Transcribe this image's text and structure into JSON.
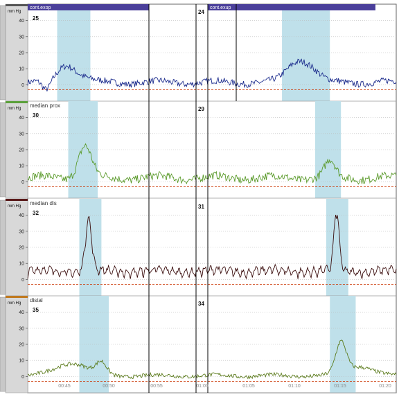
{
  "chart_data": {
    "type": "line",
    "colors": {
      "grid": "#bbbbbb",
      "highlight": "#bfe0ea",
      "baseline": "#cc3300",
      "divider": "#000000",
      "band": "#4a3f9a",
      "axis_panel": "#d8d8d8"
    },
    "x_tick_labels": [
      "00:45",
      "00:50",
      "00:55",
      "01:00",
      "01:05",
      "01:10",
      "01:15",
      "01:20"
    ],
    "band_labels": [
      "cont.exop",
      "cont.exup"
    ],
    "panels": [
      {
        "name": "panel-top",
        "label": "",
        "unit": "mm Hg",
        "color": "#1a2a8c",
        "color_tab": "#555555",
        "ylim": [
          -5,
          45
        ],
        "ticks": [
          "40",
          "30",
          "20",
          "10",
          "0"
        ],
        "numbers": [
          "25",
          "24"
        ],
        "highlights": [
          [
            0.08,
            0.17
          ],
          [
            0.69,
            0.82
          ]
        ],
        "series": {
          "baseline": 1.5,
          "noise": 2.0,
          "peaks": [
            [
              0.1,
              8,
              0.03
            ],
            [
              0.13,
              5,
              0.04
            ],
            [
              0.73,
              12,
              0.04
            ],
            [
              0.77,
              6,
              0.035
            ]
          ],
          "dips": [
            [
              0.05,
              -6,
              0.015
            ]
          ],
          "wave": 0
        }
      },
      {
        "name": "panel-median-prox",
        "label": "median prox",
        "unit": "mm Hg",
        "color": "#5a9a2a",
        "color_tab": "#5aa03a",
        "ylim": [
          -5,
          45
        ],
        "ticks": [
          "40",
          "30",
          "20",
          "10",
          "0"
        ],
        "numbers": [
          "30",
          "29"
        ],
        "highlights": [
          [
            0.11,
            0.19
          ],
          [
            0.78,
            0.85
          ]
        ],
        "series": {
          "baseline": 2.5,
          "noise": 2.5,
          "peaks": [
            [
              0.155,
              20,
              0.025
            ],
            [
              0.82,
              10,
              0.02
            ]
          ],
          "dips": [],
          "wave": 0
        }
      },
      {
        "name": "panel-median-dis",
        "label": "median dis",
        "unit": "mm Hg",
        "color": "#3a0d0d",
        "color_tab": "#5a1a1a",
        "ylim": [
          -5,
          45
        ],
        "ticks": [
          "40",
          "30",
          "20",
          "10",
          "0"
        ],
        "numbers": [
          "32",
          "31"
        ],
        "highlights": [
          [
            0.14,
            0.2
          ],
          [
            0.81,
            0.87
          ]
        ],
        "series": {
          "baseline": 2,
          "noise": 1.5,
          "peaks": [
            [
              0.165,
              32,
              0.012
            ],
            [
              0.838,
              36,
              0.01
            ]
          ],
          "dips": [],
          "wave": 5
        }
      },
      {
        "name": "panel-distal",
        "label": "distal",
        "unit": "mm Hg",
        "color": "#5a7a1a",
        "color_tab": "#c07a20",
        "ylim": [
          -5,
          45
        ],
        "ticks": [
          "40",
          "30",
          "20",
          "10",
          "0"
        ],
        "numbers": [
          "35",
          "34"
        ],
        "highlights": [
          [
            0.14,
            0.22
          ],
          [
            0.82,
            0.89
          ]
        ],
        "series": {
          "baseline": 0.5,
          "noise": 1.2,
          "peaks": [
            [
              0.12,
              8,
              0.06
            ],
            [
              0.2,
              7,
              0.02
            ],
            [
              0.85,
              19,
              0.02
            ],
            [
              0.9,
              6,
              0.05
            ]
          ],
          "dips": [],
          "wave": 0
        }
      }
    ]
  }
}
